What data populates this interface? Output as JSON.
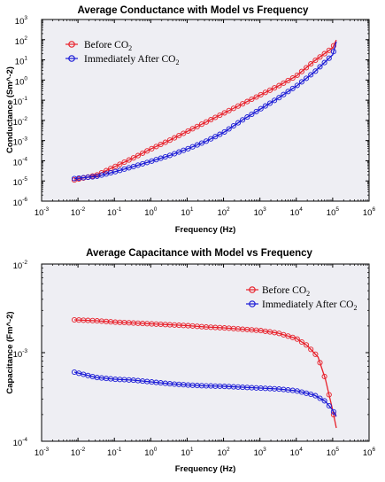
{
  "chart_data": [
    {
      "type": "line",
      "title": "Average Conductance with Model vs Frequency",
      "xlabel": "Frequency (Hz)",
      "ylabel": "Conductance (Sm^-2)",
      "xscale": "log",
      "yscale": "log",
      "xlim_exp": [
        -3,
        6
      ],
      "ylim_exp": [
        -6,
        3
      ],
      "xticks_exp": [
        -3,
        -2,
        -1,
        0,
        1,
        2,
        3,
        4,
        5,
        6
      ],
      "yticks_exp": [
        -6,
        -5,
        -4,
        -3,
        -2,
        -1,
        0,
        1,
        2,
        3
      ],
      "legend_position": "top-left",
      "series": [
        {
          "name": "Before CO2",
          "legend_main": "Before CO",
          "legend_sub": "2",
          "color": "#e8202a",
          "marker": "open-circle",
          "points": [
            [
              -2.1,
              -4.95
            ],
            [
              -1.5,
              -4.72
            ],
            [
              -1.0,
              -4.3
            ],
            [
              -0.5,
              -3.88
            ],
            [
              0.0,
              -3.42
            ],
            [
              0.5,
              -3.0
            ],
            [
              1.0,
              -2.55
            ],
            [
              1.5,
              -2.1
            ],
            [
              2.0,
              -1.65
            ],
            [
              2.5,
              -1.2
            ],
            [
              3.0,
              -0.75
            ],
            [
              3.5,
              -0.3
            ],
            [
              4.0,
              0.2
            ],
            [
              4.5,
              0.95
            ],
            [
              5.0,
              1.6
            ],
            [
              5.1,
              1.98
            ]
          ]
        },
        {
          "name": "Immediately After CO2",
          "legend_main": "Immediately After CO",
          "legend_sub": "2",
          "color": "#1a1ad6",
          "marker": "open-circle",
          "points": [
            [
              -2.1,
              -4.88
            ],
            [
              -1.5,
              -4.78
            ],
            [
              -1.0,
              -4.55
            ],
            [
              -0.5,
              -4.3
            ],
            [
              0.0,
              -4.03
            ],
            [
              0.5,
              -3.75
            ],
            [
              1.0,
              -3.42
            ],
            [
              1.5,
              -3.05
            ],
            [
              2.0,
              -2.6
            ],
            [
              2.5,
              -2.0
            ],
            [
              3.0,
              -1.45
            ],
            [
              3.5,
              -0.9
            ],
            [
              4.0,
              -0.3
            ],
            [
              4.5,
              0.4
            ],
            [
              5.0,
              1.25
            ],
            [
              5.1,
              1.9
            ]
          ]
        }
      ]
    },
    {
      "type": "line",
      "title": "Average Capacitance with Model vs Frequency",
      "xlabel": "Frequency (Hz)",
      "ylabel": "Capacitance (Fm^-2)",
      "xscale": "log",
      "yscale": "log",
      "xlim_exp": [
        -3,
        6
      ],
      "ylim_exp": [
        -4,
        -2
      ],
      "xticks_exp": [
        -3,
        -2,
        -1,
        0,
        1,
        2,
        3,
        4,
        5,
        6
      ],
      "yticks_exp": [
        -4,
        -3,
        -2
      ],
      "legend_position": "top-right",
      "series": [
        {
          "name": "Before CO2",
          "legend_main": "Before CO",
          "legend_sub": "2",
          "color": "#e8202a",
          "marker": "open-circle",
          "points": [
            [
              -2.1,
              -2.63
            ],
            [
              -1.5,
              -2.64
            ],
            [
              -1.0,
              -2.655
            ],
            [
              -0.5,
              -2.665
            ],
            [
              0.0,
              -2.675
            ],
            [
              0.5,
              -2.685
            ],
            [
              1.0,
              -2.695
            ],
            [
              1.5,
              -2.71
            ],
            [
              2.0,
              -2.72
            ],
            [
              2.5,
              -2.735
            ],
            [
              3.0,
              -2.75
            ],
            [
              3.5,
              -2.78
            ],
            [
              4.0,
              -2.84
            ],
            [
              4.3,
              -2.92
            ],
            [
              4.6,
              -3.05
            ],
            [
              4.8,
              -3.3
            ],
            [
              5.0,
              -3.65
            ],
            [
              5.1,
              -3.85
            ]
          ]
        },
        {
          "name": "Immediately After CO2",
          "legend_main": "Immediately After CO",
          "legend_sub": "2",
          "color": "#1a1ad6",
          "marker": "open-circle",
          "points": [
            [
              -2.1,
              -3.22
            ],
            [
              -1.5,
              -3.28
            ],
            [
              -1.0,
              -3.3
            ],
            [
              -0.5,
              -3.31
            ],
            [
              0.0,
              -3.33
            ],
            [
              0.5,
              -3.35
            ],
            [
              1.0,
              -3.365
            ],
            [
              1.5,
              -3.375
            ],
            [
              2.0,
              -3.38
            ],
            [
              2.5,
              -3.39
            ],
            [
              3.0,
              -3.4
            ],
            [
              3.5,
              -3.41
            ],
            [
              4.0,
              -3.43
            ],
            [
              4.5,
              -3.48
            ],
            [
              4.8,
              -3.55
            ],
            [
              5.0,
              -3.65
            ],
            [
              5.1,
              -3.72
            ]
          ]
        }
      ]
    }
  ]
}
